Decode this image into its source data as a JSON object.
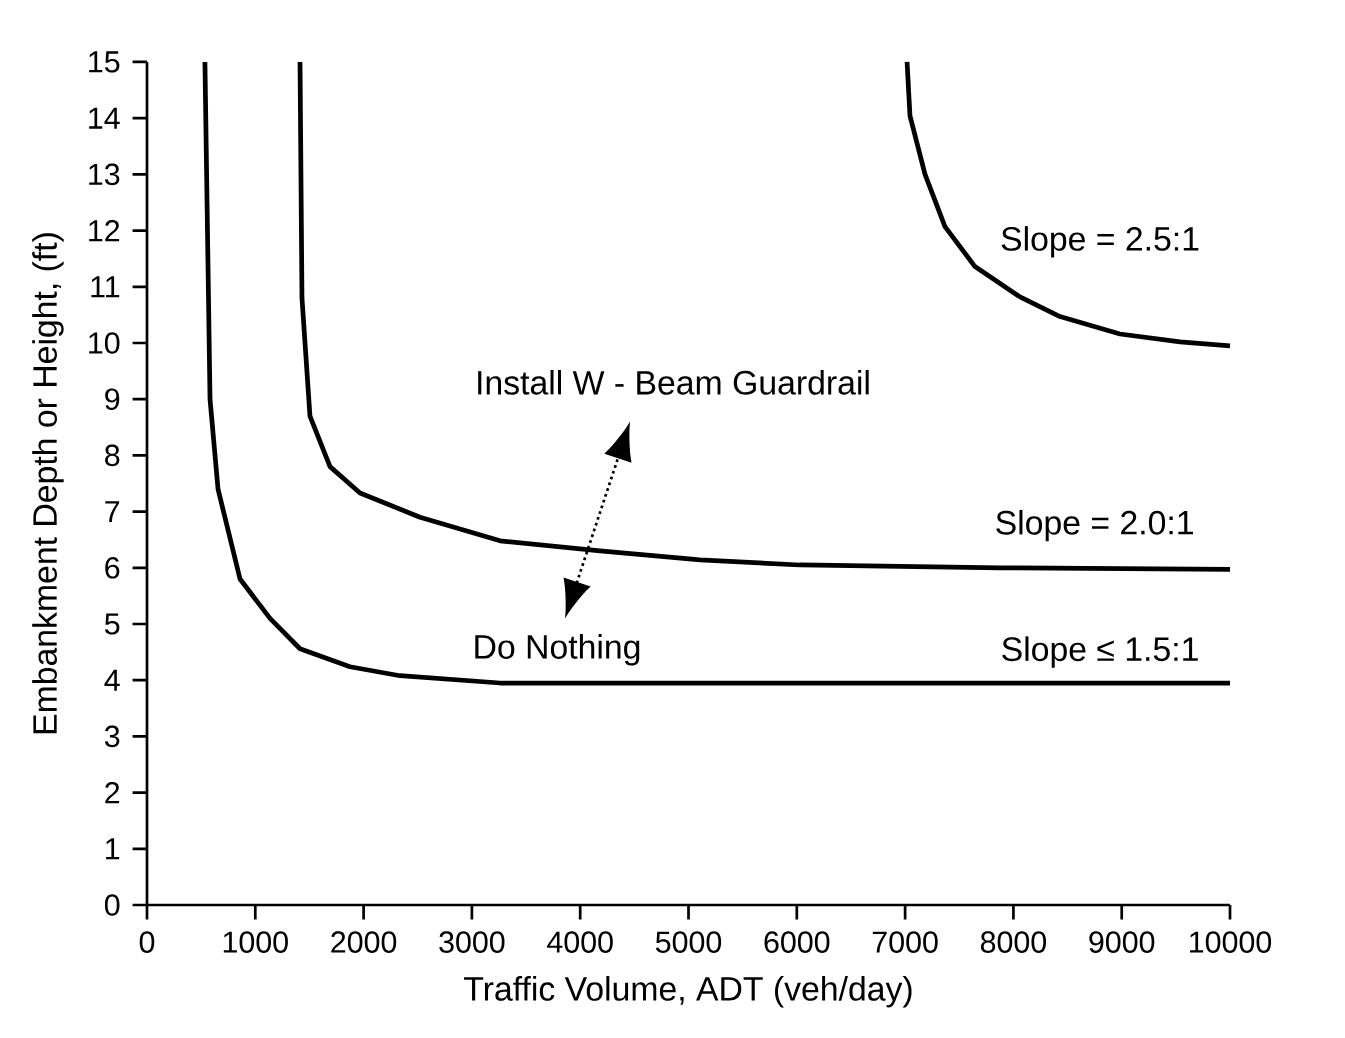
{
  "chart_data": {
    "type": "line",
    "xlabel": "Traffic Volume, ADT (veh/day)",
    "ylabel": "Embankment Depth or Height, (ft)",
    "xlim": [
      0,
      10000
    ],
    "ylim": [
      0,
      15
    ],
    "xticks": [
      0,
      1000,
      2000,
      3000,
      4000,
      5000,
      6000,
      7000,
      8000,
      9000,
      10000
    ],
    "yticks": [
      0,
      1,
      2,
      3,
      4,
      5,
      6,
      7,
      8,
      9,
      10,
      11,
      12,
      13,
      14,
      15
    ],
    "marker": "none",
    "line_style": "solid",
    "annotations": [
      "Install W - Beam Guardrail",
      "Do Nothing"
    ],
    "series": [
      {
        "name": "Slope ≤ 1.5:1",
        "color": "#000000",
        "x": [
          535,
          582,
          656,
          859,
          1136,
          1413,
          1874,
          2336,
          3260,
          10000
        ],
        "values": [
          15,
          9.0,
          7.4,
          5.8,
          5.1,
          4.56,
          4.24,
          4.08,
          3.95,
          3.95
        ]
      },
      {
        "name": "Slope = 2.0:1",
        "color": "#000000",
        "x": [
          1413,
          1431,
          1505,
          1690,
          1967,
          2521,
          3260,
          4183,
          5106,
          6030,
          7876,
          10000
        ],
        "values": [
          15,
          10.8,
          8.7,
          7.8,
          7.33,
          6.9,
          6.48,
          6.3,
          6.14,
          6.05,
          6.0,
          5.97
        ]
      },
      {
        "name": "Slope = 2.5:1",
        "color": "#000000",
        "x": [
          7018,
          7045,
          7184,
          7368,
          7645,
          8061,
          8430,
          8984,
          9538,
          10000
        ],
        "values": [
          15,
          14.04,
          13.0,
          12.07,
          11.36,
          10.82,
          10.47,
          10.16,
          10.02,
          9.95
        ]
      }
    ]
  }
}
